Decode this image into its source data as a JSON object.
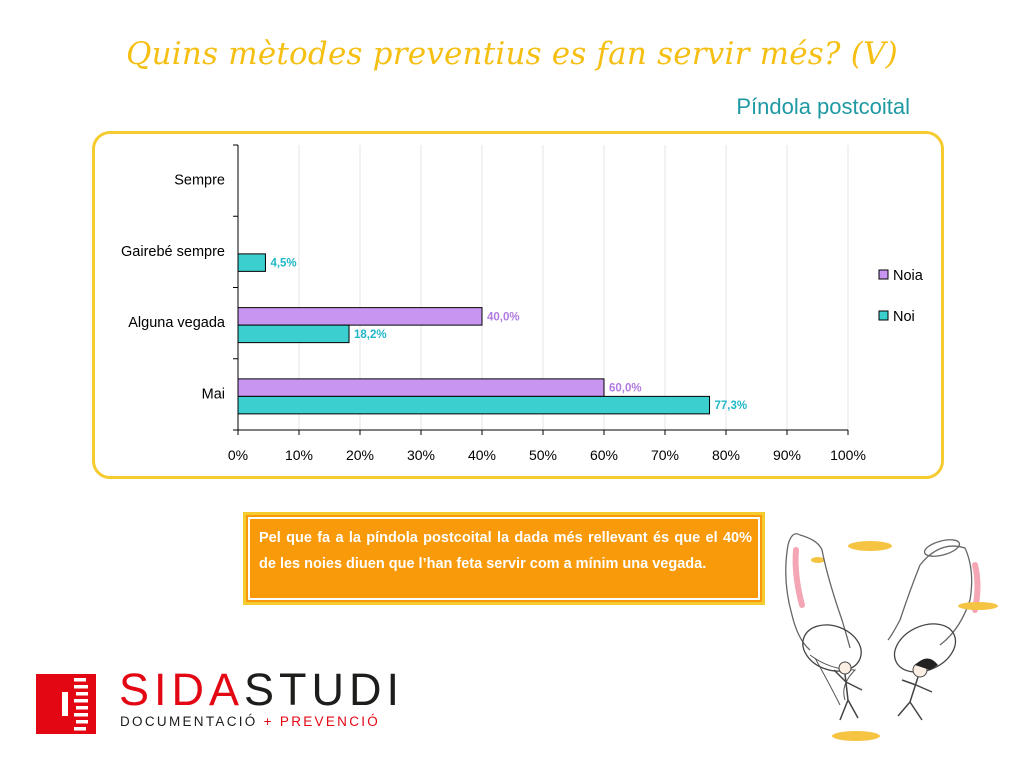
{
  "header": {
    "title": "Quins mètodes preventius es fan servir més? (V)",
    "subtitle": "Píndola postcoital"
  },
  "chart_data": {
    "type": "bar",
    "orientation": "horizontal",
    "categories": [
      "Sempre",
      "Gairebé sempre",
      "Alguna vegada",
      "Mai"
    ],
    "series": [
      {
        "name": "Noia",
        "color": "#C896F0",
        "label_color": "#B27BE0",
        "values": [
          null,
          null,
          40.0,
          60.0
        ],
        "labels": [
          "",
          "",
          "40,0%",
          "60,0%"
        ]
      },
      {
        "name": "Noi",
        "color": "#3CCFCF",
        "label_color": "#1FB8C8",
        "values": [
          null,
          4.5,
          18.2,
          77.3
        ],
        "labels": [
          "",
          "4,5%",
          "18,2%",
          "77,3%"
        ]
      }
    ],
    "xlim": [
      0,
      100
    ],
    "xticks": [
      "0%",
      "10%",
      "20%",
      "30%",
      "40%",
      "50%",
      "60%",
      "70%",
      "80%",
      "90%",
      "100%"
    ],
    "grid": true,
    "legend_position": "right"
  },
  "note": {
    "text": "Pel que fa a la píndola postcoital la dada més rellevant és que el 40% de les noies diuen que l’han feta servir com a mínim una vegada."
  },
  "logo": {
    "name_part1": "SIDA",
    "name_part2": "STUDI",
    "tag_part1": "DOCUMENTACIÓ ",
    "tag_plus": "+",
    "tag_part2": " PREVENCIÓ",
    "colors": {
      "red": "#E30613",
      "dark": "#1D1D1B"
    }
  },
  "colors": {
    "title": "#F5BF14",
    "subtitle": "#1F9AA3",
    "frame": "#F5CB30",
    "note_bg": "#F89A0A"
  }
}
